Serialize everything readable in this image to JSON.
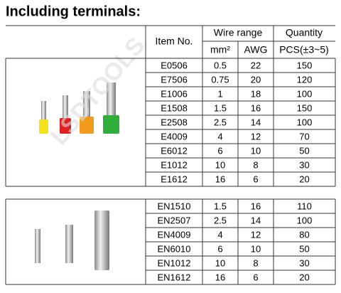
{
  "header": {
    "title": "Including terminals:"
  },
  "watermark": "LSDTOOLS",
  "table": {
    "columns": {
      "item": "Item No.",
      "wire_range": "Wire range",
      "quantity": "Quantity",
      "mm2": "mm²",
      "awg": "AWG",
      "pcs": "PCS(±3~5)"
    },
    "groups": [
      [
        [
          "E0506",
          "0.5",
          "22",
          "150"
        ],
        [
          "E7506",
          "0.75",
          "20",
          "120"
        ],
        [
          "E1006",
          "1",
          "18",
          "100"
        ],
        [
          "E1508",
          "1.5",
          "16",
          "150"
        ],
        [
          "E2508",
          "2.5",
          "14",
          "100"
        ],
        [
          "E4009",
          "4",
          "12",
          "70"
        ],
        [
          "E6012",
          "6",
          "10",
          "50"
        ],
        [
          "E1012",
          "10",
          "8",
          "30"
        ],
        [
          "E1612",
          "16",
          "6",
          "20"
        ]
      ],
      [
        [
          "EN1510",
          "1.5",
          "16",
          "110"
        ],
        [
          "EN2507",
          "2.5",
          "14",
          "100"
        ],
        [
          "EN4009",
          "4",
          "12",
          "80"
        ],
        [
          "EN6010",
          "6",
          "10",
          "50"
        ],
        [
          "EN1012",
          "10",
          "8",
          "30"
        ],
        [
          "EN1612",
          "16",
          "6",
          "20"
        ]
      ]
    ]
  }
}
